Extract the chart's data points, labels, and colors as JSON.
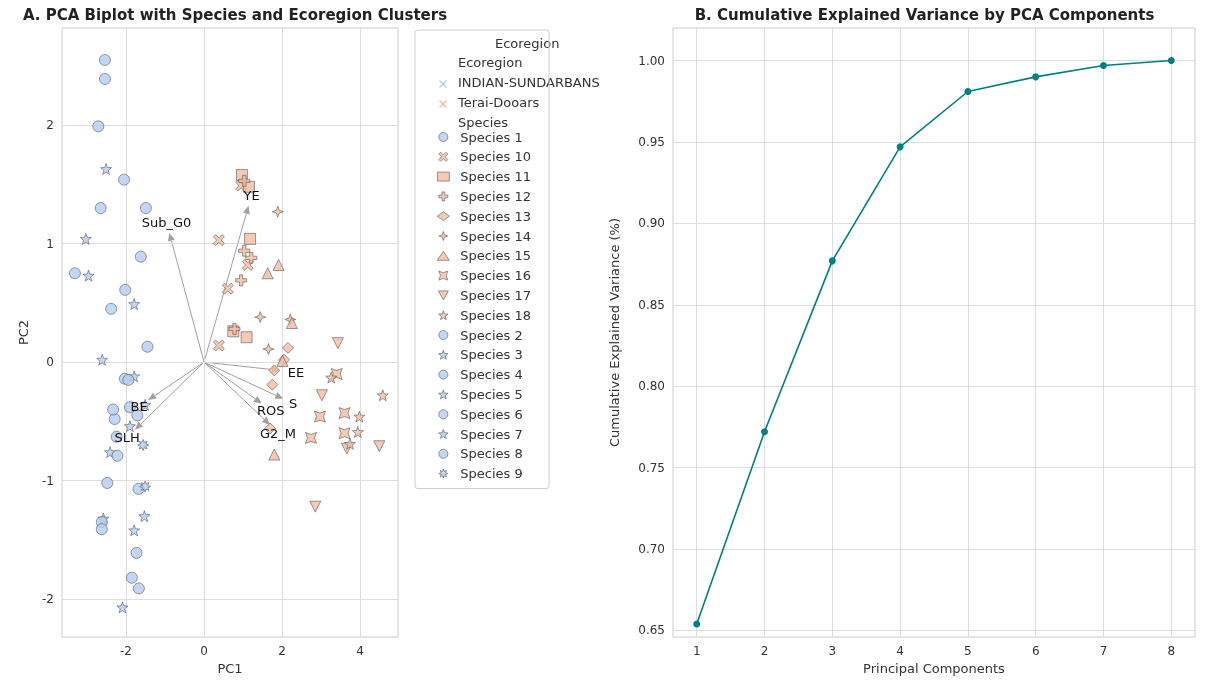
{
  "chart_data": [
    {
      "type": "scatter",
      "title": "A. PCA Biplot with Species and Ecoregion Clusters",
      "xlabel": "PC1",
      "ylabel": "PC2",
      "legend_title": "Ecoregion",
      "annotations": [
        "Ecoregion",
        "INDIAN-SUNDARBANS",
        "Terai-Dooars",
        "Species",
        "Sub_G0",
        "YE",
        "EE",
        "S",
        "ROS",
        "G2_M",
        "BE",
        "SLH"
      ],
      "xlim": [
        -3.64,
        4.97
      ],
      "ylim": [
        -2.32,
        2.82
      ],
      "xticks": [
        -2,
        0,
        2,
        4
      ],
      "yticks": [
        -2,
        -1,
        0,
        1,
        2
      ],
      "grid": true,
      "legend": "right",
      "series": [
        {
          "name": "Species 1",
          "color": "#b3cdf5",
          "marker": "circle",
          "x": [
            -2.54,
            -2.71,
            -2.65,
            -1.62,
            -2.02
          ],
          "values": [
            2.55,
            1.99,
            1.3,
            0.89,
            0.61
          ]
        },
        {
          "name": "Species 10",
          "color": "#f4bba0",
          "marker": "cross",
          "x": [
            0.95,
            0.38,
            1.12,
            0.61,
            0.38
          ],
          "values": [
            1.49,
            1.03,
            0.82,
            0.62,
            0.14
          ]
        },
        {
          "name": "Species 11",
          "color": "#f4bba0",
          "marker": "square",
          "x": [
            0.97,
            1.15,
            1.18,
            0.75,
            1.09
          ],
          "values": [
            1.58,
            1.48,
            1.04,
            0.26,
            0.21
          ]
        },
        {
          "name": "Species 12",
          "color": "#f4bba0",
          "marker": "plus",
          "x": [
            1.03,
            1.03,
            1.21,
            0.95,
            0.78
          ],
          "values": [
            1.53,
            0.94,
            0.88,
            0.69,
            0.28
          ]
        },
        {
          "name": "Species 13",
          "color": "#f4bba0",
          "marker": "diamond",
          "x": [
            2.15,
            1.8,
            1.75,
            1.69,
            2.05
          ],
          "values": [
            0.12,
            -0.07,
            -0.19,
            -0.56,
            0.02
          ]
        },
        {
          "name": "Species 14",
          "color": "#f4bba0",
          "marker": "star4",
          "x": [
            1.89,
            1.44,
            2.21,
            1.65
          ],
          "values": [
            1.27,
            0.38,
            0.36,
            0.11
          ]
        },
        {
          "name": "Species 15",
          "color": "#f4bba0",
          "marker": "triangle",
          "x": [
            1.63,
            1.91,
            2.25,
            2.01,
            1.8
          ],
          "values": [
            0.75,
            0.82,
            0.33,
            0.01,
            -0.78
          ]
        },
        {
          "name": "Species 16",
          "color": "#f4bba0",
          "marker": "star4x",
          "x": [
            3.4,
            2.97,
            3.6,
            2.74,
            3.6
          ],
          "values": [
            -0.1,
            -0.46,
            -0.43,
            -0.64,
            -0.6
          ]
        },
        {
          "name": "Species 17",
          "color": "#f4bba0",
          "marker": "triangle-down",
          "x": [
            3.43,
            3.02,
            3.66,
            4.49,
            2.85
          ],
          "values": [
            0.16,
            -0.28,
            -0.73,
            -0.71,
            -1.22
          ]
        },
        {
          "name": "Species 18",
          "color": "#f4bba0",
          "marker": "star",
          "x": [
            3.26,
            4.58,
            3.98,
            3.94,
            3.74
          ],
          "values": [
            -0.13,
            -0.28,
            -0.46,
            -0.59,
            -0.69
          ]
        },
        {
          "name": "Species 2",
          "color": "#b3cdf5",
          "marker": "circle",
          "x": [
            -1.49,
            -2.29
          ],
          "values": [
            1.3,
            -0.48
          ]
        },
        {
          "name": "Species 3",
          "color": "#b3cdf5",
          "marker": "star",
          "x": [
            -2.51,
            -3.03,
            -2.96,
            -2.61,
            -1.51,
            -2.41
          ],
          "values": [
            1.63,
            1.04,
            0.73,
            0.02,
            -0.36,
            -0.76
          ]
        },
        {
          "name": "Species 4",
          "color": "#b3cdf5",
          "marker": "circle",
          "x": [
            -2.54,
            -2.05,
            -3.31,
            -2.38,
            -1.45,
            -2.33,
            -1.9,
            -2.22,
            -1.73,
            -1.85,
            -1.67
          ],
          "values": [
            2.39,
            1.54,
            0.75,
            0.45,
            0.13,
            -0.4,
            -0.38,
            -0.79,
            -1.61,
            -1.82,
            -1.91
          ]
        },
        {
          "name": "Species 5",
          "color": "#b3cdf5",
          "marker": "star",
          "x": [
            -1.79,
            -1.79,
            -1.9,
            -2.58
          ],
          "values": [
            0.49,
            -0.12,
            -0.54,
            -1.32
          ]
        },
        {
          "name": "Species 6",
          "color": "#b3cdf5",
          "marker": "circle",
          "x": [
            -2.03,
            -1.94,
            -1.71,
            -2.24
          ],
          "values": [
            -0.14,
            -0.15,
            -0.45,
            -0.63
          ]
        },
        {
          "name": "Species 7",
          "color": "#b3cdf5",
          "marker": "star",
          "x": [
            -1.53,
            -1.79,
            -2.09
          ],
          "values": [
            -1.3,
            -1.42,
            -2.07
          ]
        },
        {
          "name": "Species 8",
          "color": "#b3cdf5",
          "marker": "circle",
          "x": [
            -2.48,
            -1.68,
            -2.62,
            -2.62
          ],
          "values": [
            -1.02,
            -1.07,
            -1.35,
            -1.41
          ]
        },
        {
          "name": "Species 9",
          "color": "#b3cdf5",
          "marker": "star8",
          "x": [
            -1.56,
            -1.51
          ],
          "values": [
            -0.7,
            -1.05
          ]
        }
      ]
    },
    {
      "type": "line",
      "title": "B. Cumulative Explained Variance by PCA Components",
      "xlabel": "Principal Components",
      "ylabel": "Cumulative Explained Variance (%)",
      "x": [
        1,
        2,
        3,
        4,
        5,
        6,
        7,
        8
      ],
      "values": [
        0.654,
        0.772,
        0.877,
        0.947,
        0.981,
        0.99,
        0.997,
        1.0
      ],
      "color": "#008080",
      "marker": "circle",
      "xlim": [
        0.65,
        8.35
      ],
      "ylim": [
        0.646,
        1.02
      ],
      "xticks": [
        1,
        2,
        3,
        4,
        5,
        6,
        7,
        8
      ],
      "yticks": [
        0.65,
        {
          "value": 0.7,
          "label": "0.70"
        },
        0.75,
        {
          "value": 0.8,
          "label": "0.80"
        },
        0.85,
        {
          "value": 0.9,
          "label": "0.90"
        },
        0.95,
        {
          "value": 1.0,
          "label": "1.00"
        }
      ],
      "grid": true
    }
  ]
}
